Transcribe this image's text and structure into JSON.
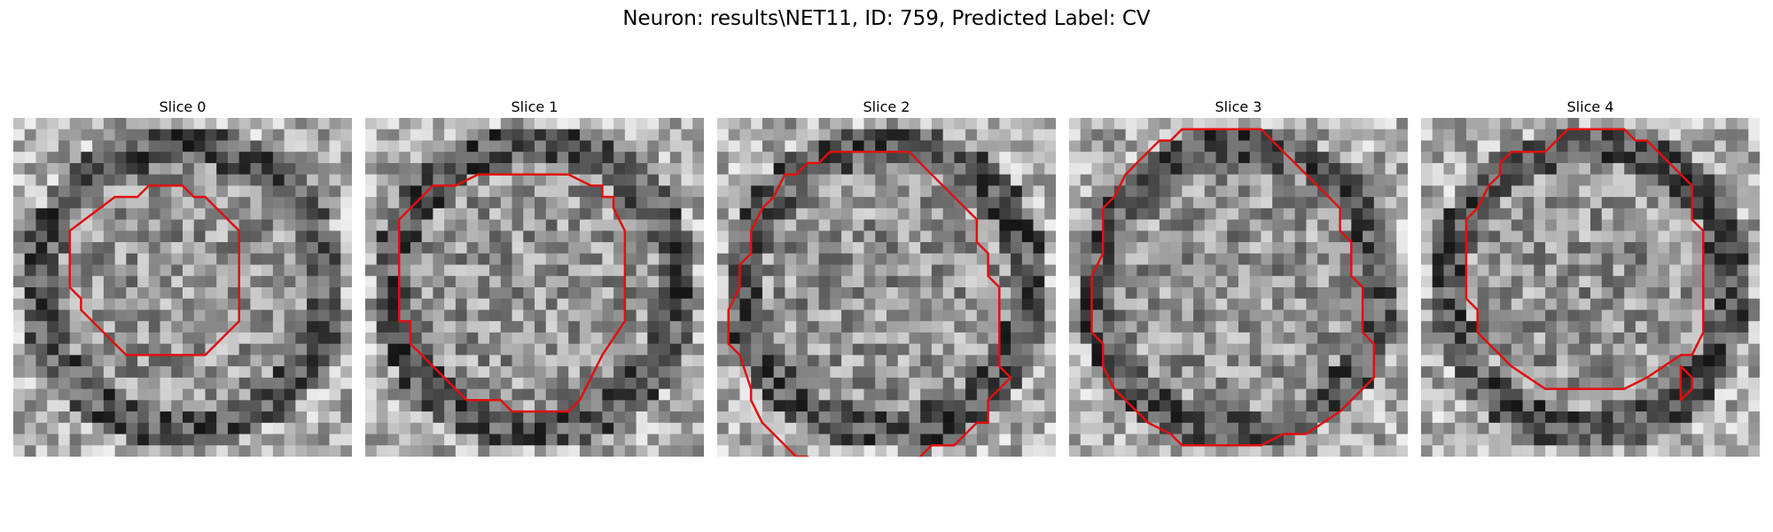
{
  "figure": {
    "title": "Neuron: results\\NET11, ID: 759, Predicted Label: CV",
    "contour_color": "#e01010"
  },
  "slices": [
    {
      "label": "Slice 0",
      "contour": [
        [
          12,
          6
        ],
        [
          15,
          6
        ],
        [
          16,
          7
        ],
        [
          17,
          7
        ],
        [
          20,
          10
        ],
        [
          20,
          18
        ],
        [
          18,
          20
        ],
        [
          17,
          21
        ],
        [
          10,
          21
        ],
        [
          7,
          18
        ],
        [
          6,
          17
        ],
        [
          6,
          16
        ],
        [
          5,
          15
        ],
        [
          5,
          10
        ],
        [
          9,
          7
        ],
        [
          11,
          7
        ]
      ],
      "extra": []
    },
    {
      "label": "Slice 1",
      "contour": [
        [
          10,
          5
        ],
        [
          18,
          5
        ],
        [
          20,
          6
        ],
        [
          21,
          6
        ],
        [
          21,
          7
        ],
        [
          22,
          7
        ],
        [
          22,
          8
        ],
        [
          23,
          10
        ],
        [
          23,
          18
        ],
        [
          21,
          21
        ],
        [
          20,
          23
        ],
        [
          19,
          25
        ],
        [
          18,
          26
        ],
        [
          13,
          26
        ],
        [
          12,
          25
        ],
        [
          9,
          25
        ],
        [
          8,
          24
        ],
        [
          6,
          22
        ],
        [
          5,
          21
        ],
        [
          4,
          20
        ],
        [
          4,
          18
        ],
        [
          3,
          18
        ],
        [
          3,
          9
        ],
        [
          6,
          6
        ],
        [
          8,
          6
        ]
      ],
      "extra": []
    },
    {
      "label": "Slice 2",
      "contour": [
        [
          10,
          3
        ],
        [
          17,
          3
        ],
        [
          19,
          5
        ],
        [
          23,
          9
        ],
        [
          23,
          11
        ],
        [
          24,
          12
        ],
        [
          24,
          14
        ],
        [
          25,
          15
        ],
        [
          25,
          22
        ],
        [
          26,
          23
        ],
        [
          25,
          24
        ],
        [
          24,
          25
        ],
        [
          24,
          27
        ],
        [
          23,
          27
        ],
        [
          21,
          29
        ],
        [
          19,
          29
        ],
        [
          17,
          31
        ],
        [
          9,
          31
        ],
        [
          8,
          30
        ],
        [
          7,
          30
        ],
        [
          5,
          28
        ],
        [
          4,
          27
        ],
        [
          3,
          25
        ],
        [
          3,
          24
        ],
        [
          2,
          21
        ],
        [
          1,
          20
        ],
        [
          1,
          17
        ],
        [
          2,
          15
        ],
        [
          2,
          13
        ],
        [
          3,
          12
        ],
        [
          3,
          10
        ],
        [
          4,
          8
        ],
        [
          5,
          7
        ],
        [
          6,
          5
        ],
        [
          7,
          5
        ],
        [
          8,
          4
        ],
        [
          9,
          4
        ]
      ],
      "extra": []
    },
    {
      "label": "Slice 3",
      "contour": [
        [
          10,
          1
        ],
        [
          17,
          1
        ],
        [
          19,
          3
        ],
        [
          23,
          7
        ],
        [
          24,
          8
        ],
        [
          24,
          10
        ],
        [
          25,
          11
        ],
        [
          25,
          14
        ],
        [
          26,
          15
        ],
        [
          26,
          19
        ],
        [
          27,
          20
        ],
        [
          27,
          23
        ],
        [
          24,
          26
        ],
        [
          21,
          28
        ],
        [
          19,
          28
        ],
        [
          17,
          29
        ],
        [
          10,
          29
        ],
        [
          9,
          28
        ],
        [
          7,
          27
        ],
        [
          4,
          24
        ],
        [
          3,
          22
        ],
        [
          3,
          20
        ],
        [
          2,
          19
        ],
        [
          2,
          14
        ],
        [
          3,
          12
        ],
        [
          3,
          8
        ],
        [
          4,
          7
        ],
        [
          5,
          5
        ],
        [
          6,
          4
        ],
        [
          8,
          2
        ],
        [
          9,
          2
        ]
      ],
      "extra": []
    },
    {
      "label": "Slice 4",
      "contour": [
        [
          13,
          1
        ],
        [
          18,
          1
        ],
        [
          19,
          2
        ],
        [
          20,
          2
        ],
        [
          22,
          4
        ],
        [
          23,
          5
        ],
        [
          24,
          6
        ],
        [
          24,
          9
        ],
        [
          25,
          10
        ],
        [
          25,
          19
        ],
        [
          24,
          21
        ],
        [
          23,
          21
        ],
        [
          20,
          23
        ],
        [
          18,
          24
        ],
        [
          11,
          24
        ],
        [
          8,
          22
        ],
        [
          5,
          19
        ],
        [
          5,
          17
        ],
        [
          4,
          16
        ],
        [
          4,
          9
        ],
        [
          5,
          8
        ],
        [
          6,
          6
        ],
        [
          7,
          5
        ],
        [
          7,
          4
        ],
        [
          8,
          3
        ],
        [
          11,
          3
        ],
        [
          12,
          2
        ]
      ],
      "extra": [
        [
          23,
          22
        ],
        [
          24,
          23
        ],
        [
          24,
          24
        ],
        [
          23,
          25
        ],
        [
          23,
          22
        ]
      ]
    }
  ]
}
